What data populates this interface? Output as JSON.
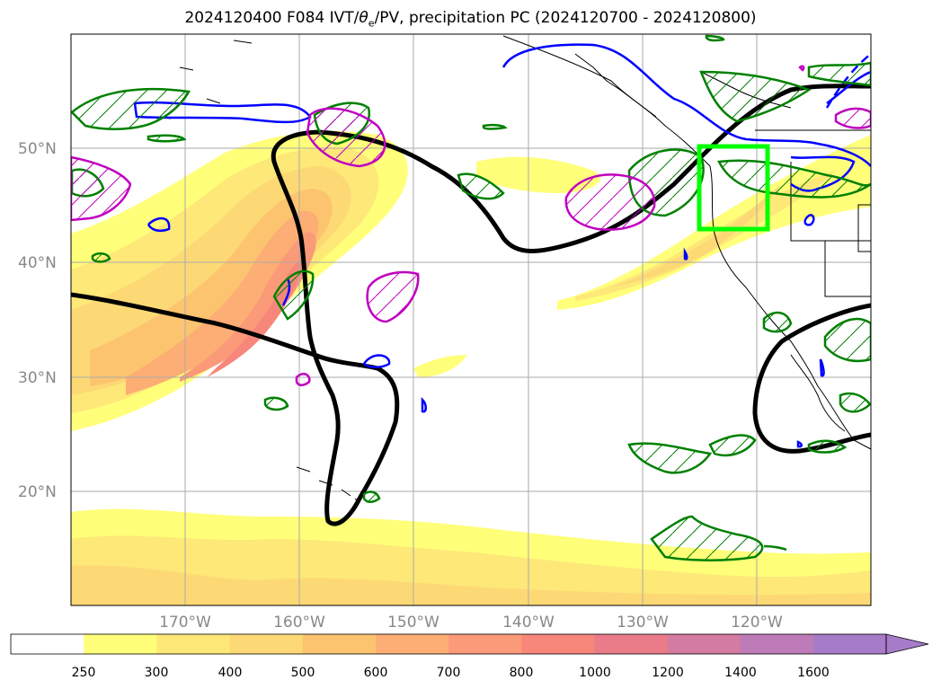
{
  "title": {
    "main": "2024120400 F084 IVT/",
    "theta": "θ",
    "sub": "e",
    "rest": "/PV, precipitation PC (2024120700 - 2024120800)"
  },
  "map": {
    "lon_labels": [
      "170°W",
      "160°W",
      "150°W",
      "140°W",
      "130°W",
      "120°W"
    ],
    "lat_labels": [
      "50°N",
      "40°N",
      "30°N",
      "20°N"
    ]
  },
  "colorbar": {
    "ticks": [
      "250",
      "300",
      "400",
      "500",
      "600",
      "700",
      "800",
      "1000",
      "1200",
      "1400",
      "1600"
    ],
    "colors": [
      "#ffffff",
      "#ffff7a",
      "#fde878",
      "#fdd976",
      "#fdc470",
      "#fdae74",
      "#fb9a78",
      "#f7877a",
      "#ea7b88",
      "#d37ba0",
      "#bd7bb7",
      "#a67bc8"
    ]
  },
  "colors": {
    "ivt_contour": "#000000",
    "pv_blue": "#0000ff",
    "theta_green": "#008000",
    "precip_magenta": "#c000c0",
    "target_box": "#00ff00"
  }
}
